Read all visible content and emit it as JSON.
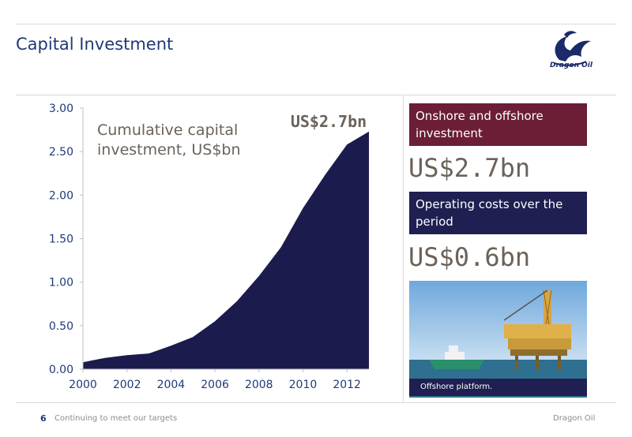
{
  "page": {
    "title": "Capital Investment"
  },
  "logo": {
    "text": "Dragon Oil"
  },
  "chart_data": {
    "type": "area",
    "x": [
      2000,
      2001,
      2002,
      2003,
      2004,
      2005,
      2006,
      2007,
      2008,
      2009,
      2010,
      2011,
      2012,
      2013
    ],
    "values": [
      0.08,
      0.13,
      0.16,
      0.18,
      0.27,
      0.37,
      0.55,
      0.78,
      1.07,
      1.4,
      1.85,
      2.23,
      2.58,
      2.73
    ],
    "xticks": [
      "2000",
      "2002",
      "2004",
      "2006",
      "2008",
      "2010",
      "2012"
    ],
    "yticks": [
      "0.00",
      "0.50",
      "1.00",
      "1.50",
      "2.00",
      "2.50",
      "3.00"
    ],
    "xlim": [
      2000,
      2013
    ],
    "ylim": [
      0,
      3
    ],
    "annotation": "Cumulative capital investment, US$bn",
    "annotation_lines": [
      "Cumulative capital",
      "investment, US$bn"
    ],
    "end_label": "US$2.7bn",
    "fill_color": "#1b1b4e",
    "grid": false
  },
  "sidebar": {
    "box1_lines": [
      "Onshore and offshore",
      "investment"
    ],
    "box1_value": "US$2.7bn",
    "box2_lines": [
      "Operating costs over the",
      "period"
    ],
    "box2_value": "US$0.6bn",
    "photo_caption": "Offshore platform.",
    "box1_color": "#6b1e35",
    "box2_color": "#1f1f52"
  },
  "footer": {
    "page_number": "6",
    "left_text": "Continuing to meet our targets",
    "right_text": "Dragon Oil"
  }
}
